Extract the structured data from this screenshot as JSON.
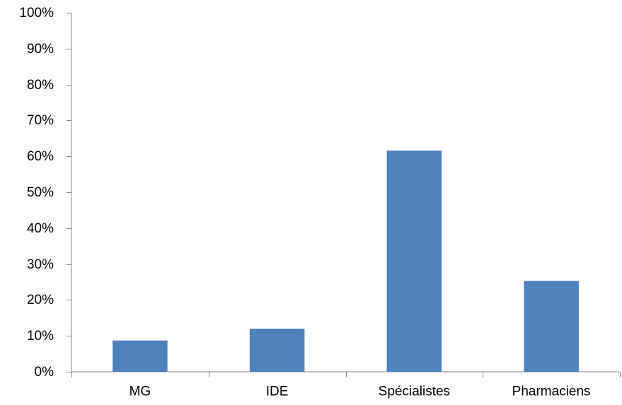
{
  "chart_data": {
    "type": "bar",
    "categories": [
      "MG",
      "IDE",
      "Spécialistes",
      "Pharmaciens"
    ],
    "values": [
      8.7,
      12.0,
      61.6,
      25.3
    ],
    "ylim": [
      0,
      100
    ],
    "yticks": [
      0,
      10,
      20,
      30,
      40,
      50,
      60,
      70,
      80,
      90,
      100
    ],
    "ytick_suffix": "%",
    "bar_color": "#4f81bd",
    "axis_color": "#868686",
    "grid": false,
    "legend": "none"
  }
}
